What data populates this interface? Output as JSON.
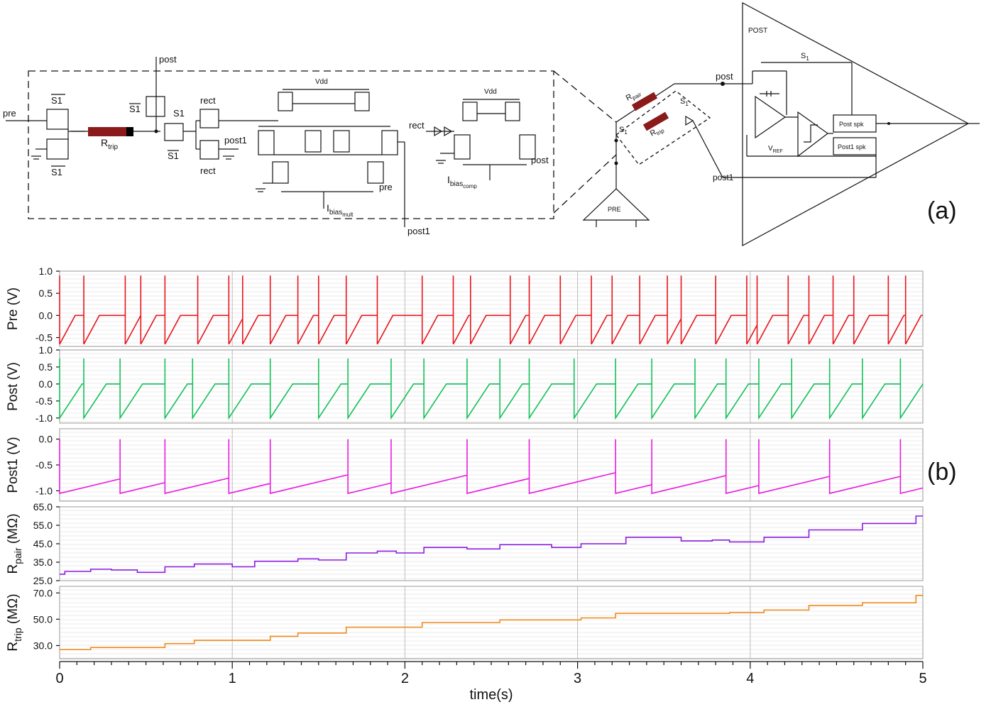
{
  "circuit": {
    "nodes": {
      "pre": "pre",
      "post": "post",
      "post1": "post1",
      "rect": "rect",
      "vdd": "Vdd",
      "s1": "S1",
      "s1bar": "S1",
      "pre_block": "PRE",
      "post_block": "POST",
      "post_spk": "Post spk",
      "post1_spk": "Post1 spk",
      "s_sub": "S",
      "s_sub_idx": "1",
      "v_ref": "V",
      "v_ref_sub": "REF",
      "r_pair": "R",
      "r_pair_sub": "pair",
      "r_trip": "R",
      "r_trip_sub": "trip",
      "ibias_mult": "I",
      "ibias_mult_sub": "bias",
      "ibias_mult_subsub": "mult",
      "ibias_comp": "I",
      "ibias_comp_sub": "bias",
      "ibias_comp_subsub": "comp"
    },
    "colors": {
      "resistor_body": "#8b1a1a",
      "resistor_end": "#000000"
    }
  },
  "panel_labels": {
    "a": "(a)",
    "b": "(b)"
  },
  "chart_data": {
    "type": "line",
    "x": {
      "label": "time(s)",
      "ticks": [
        "0",
        "1",
        "2",
        "3",
        "4",
        "5"
      ],
      "range": [
        0,
        5
      ]
    },
    "grid": true,
    "panels": [
      {
        "name": "Pre (V)",
        "ylabel": "Pre (V)",
        "color": "#e8141b",
        "ylim": [
          -0.7,
          1.0
        ],
        "ticks": [
          "1.0",
          "0.5",
          "0.0",
          "-0.5"
        ],
        "tick_values": [
          1.0,
          0.5,
          0.0,
          -0.5
        ],
        "shape": "sawtooth",
        "spike": 0.9,
        "low": -0.65,
        "rest": 0.0,
        "ramp_s": 0.09,
        "events": [
          0.0,
          0.14,
          0.38,
          0.47,
          0.61,
          0.8,
          0.98,
          1.06,
          1.22,
          1.38,
          1.5,
          1.66,
          1.84,
          2.1,
          2.28,
          2.38,
          2.61,
          2.72,
          2.9,
          3.08,
          3.2,
          3.36,
          3.52,
          3.6,
          3.8,
          3.98,
          4.04,
          4.22,
          4.34,
          4.48,
          4.6,
          4.8,
          4.9
        ]
      },
      {
        "name": "Post (V)",
        "ylabel": "Post (V)",
        "color": "#14c05a",
        "ylim": [
          -1.15,
          1.0
        ],
        "ticks": [
          "1.0",
          "0.5",
          "0.0",
          "-0.5",
          "-1.0"
        ],
        "tick_values": [
          1.0,
          0.5,
          0.0,
          -0.5,
          -1.0
        ],
        "shape": "sawtooth",
        "spike": 0.75,
        "low": -1.0,
        "rest": 0.0,
        "ramp_s": 0.13,
        "events": [
          0.0,
          0.14,
          0.35,
          0.61,
          0.77,
          0.98,
          1.22,
          1.5,
          1.67,
          1.92,
          2.11,
          2.36,
          2.55,
          2.72,
          2.98,
          3.22,
          3.43,
          3.68,
          3.86,
          4.05,
          4.24,
          4.46,
          4.65,
          4.87
        ]
      },
      {
        "name": "Post1 (V)",
        "ylabel": "Post1 (V)",
        "color": "#e81be0",
        "ylim": [
          -1.2,
          0.2
        ],
        "ticks": [
          "0.0",
          "-0.5",
          "-1.0"
        ],
        "tick_values": [
          0.0,
          -0.5,
          -1.0
        ],
        "shape": "decay",
        "spike": 0.0,
        "low": -1.05,
        "rest": -0.65,
        "events": [
          0.0,
          0.35,
          0.61,
          0.98,
          1.22,
          1.67,
          1.92,
          2.36,
          2.72,
          3.22,
          3.43,
          3.86,
          4.05,
          4.46,
          4.87
        ]
      },
      {
        "name": "R_pair (MΩ)",
        "ylabel": "R",
        "ylabel_sub": "pair",
        "ylabel_unit": " (MΩ)",
        "color": "#8a1de0",
        "ylim": [
          25,
          65
        ],
        "ticks": [
          "65.0",
          "55.0",
          "45.0",
          "35.0",
          "25.0"
        ],
        "tick_values": [
          65,
          55,
          45,
          35,
          25
        ],
        "shape": "step",
        "steps": [
          [
            0.0,
            28.5
          ],
          [
            0.03,
            30.0
          ],
          [
            0.18,
            31.2
          ],
          [
            0.3,
            30.8
          ],
          [
            0.45,
            29.5
          ],
          [
            0.61,
            32.5
          ],
          [
            0.78,
            34.0
          ],
          [
            1.0,
            32.5
          ],
          [
            1.13,
            35.5
          ],
          [
            1.38,
            36.8
          ],
          [
            1.5,
            36.2
          ],
          [
            1.66,
            40.0
          ],
          [
            1.84,
            41.0
          ],
          [
            1.95,
            40.0
          ],
          [
            2.11,
            43.0
          ],
          [
            2.36,
            42.2
          ],
          [
            2.55,
            44.5
          ],
          [
            2.85,
            43.0
          ],
          [
            3.02,
            45.0
          ],
          [
            3.28,
            48.5
          ],
          [
            3.6,
            46.5
          ],
          [
            3.78,
            47.0
          ],
          [
            3.88,
            46.0
          ],
          [
            4.08,
            48.5
          ],
          [
            4.34,
            52.5
          ],
          [
            4.65,
            56.0
          ],
          [
            4.96,
            60.0
          ],
          [
            5.0,
            60.0
          ]
        ]
      },
      {
        "name": "R_trip (MΩ)",
        "ylabel": "R",
        "ylabel_sub": "trip",
        "ylabel_unit": " (MΩ)",
        "color": "#f08a1b",
        "ylim": [
          20,
          75
        ],
        "ticks": [
          "70.0",
          "50.0",
          "30.0"
        ],
        "tick_values": [
          70,
          50,
          30
        ],
        "shape": "step",
        "steps": [
          [
            0.0,
            27.0
          ],
          [
            0.18,
            28.5
          ],
          [
            0.61,
            31.5
          ],
          [
            0.78,
            34.0
          ],
          [
            1.22,
            37.0
          ],
          [
            1.38,
            39.5
          ],
          [
            1.66,
            44.0
          ],
          [
            2.1,
            47.5
          ],
          [
            2.55,
            49.5
          ],
          [
            3.02,
            51.0
          ],
          [
            3.22,
            54.5
          ],
          [
            3.88,
            55.0
          ],
          [
            4.08,
            57.0
          ],
          [
            4.34,
            60.5
          ],
          [
            4.65,
            62.5
          ],
          [
            4.96,
            68.0
          ],
          [
            5.0,
            68.0
          ]
        ]
      }
    ]
  }
}
